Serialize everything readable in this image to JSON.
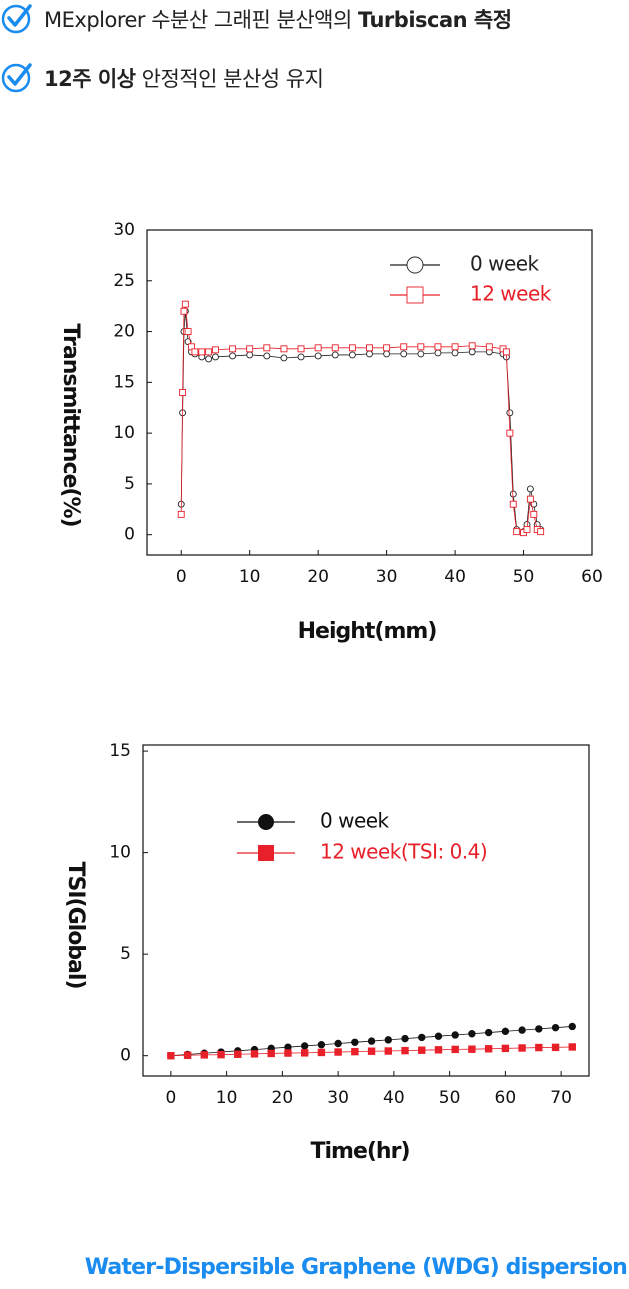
{
  "bullets": [
    {
      "parts": [
        {
          "text": "MExplorer 수분산 그래핀 분산액의 "
        },
        {
          "text": "Turbiscan 측정",
          "bold": true
        }
      ]
    },
    {
      "parts": [
        {
          "text": "12주 이상",
          "bold": true
        },
        {
          "text": " 안정적인 분산성 유지"
        }
      ]
    }
  ],
  "chart_data": [
    {
      "type": "line",
      "xlabel": "Height(mm)",
      "ylabel": "Transmittance(%)",
      "x": [
        0,
        0.2,
        0.4,
        0.6,
        1,
        1.5,
        2,
        3,
        4,
        5,
        7.5,
        10,
        12.5,
        15,
        17.5,
        20,
        22.5,
        25,
        27.5,
        30,
        32.5,
        35,
        37.5,
        40,
        42.5,
        45,
        47,
        47.5,
        48,
        48.5,
        49,
        50,
        50.5,
        51,
        51.5,
        52,
        52.5
      ],
      "series": [
        {
          "name": "0 week",
          "color": "#222222",
          "marker": "circle-open",
          "values": [
            3,
            12,
            20,
            22,
            19,
            18,
            17.8,
            17.5,
            17.3,
            17.5,
            17.6,
            17.7,
            17.6,
            17.4,
            17.5,
            17.6,
            17.7,
            17.7,
            17.8,
            17.8,
            17.8,
            17.8,
            17.9,
            17.9,
            18,
            18,
            17.8,
            17.5,
            12,
            4,
            0.5,
            0.3,
            1,
            4.5,
            3,
            1,
            0.5
          ]
        },
        {
          "name": "12 week",
          "color": "#e8202a",
          "marker": "square-open",
          "values": [
            2,
            14,
            22,
            22.7,
            20,
            18.5,
            18,
            18,
            18,
            18.2,
            18.3,
            18.3,
            18.4,
            18.3,
            18.3,
            18.4,
            18.4,
            18.4,
            18.4,
            18.4,
            18.5,
            18.5,
            18.5,
            18.5,
            18.6,
            18.5,
            18.3,
            18,
            10,
            3,
            0.3,
            0.2,
            0.5,
            3.5,
            2,
            0.5,
            0.3
          ]
        }
      ],
      "xlim": [
        -5,
        60
      ],
      "ylim": [
        -2,
        30
      ],
      "xticks": [
        0,
        10,
        20,
        30,
        40,
        50,
        60
      ],
      "yticks": [
        0,
        5,
        10,
        15,
        20,
        25,
        30
      ]
    },
    {
      "type": "line",
      "xlabel": "Time(hr)",
      "ylabel": "TSI(Global)",
      "x": [
        0,
        3,
        6,
        9,
        12,
        15,
        18,
        21,
        24,
        27,
        30,
        33,
        36,
        39,
        42,
        45,
        48,
        51,
        54,
        57,
        60,
        63,
        66,
        69,
        72
      ],
      "series": [
        {
          "name": "0 week",
          "color": "#111111",
          "marker": "circle",
          "values": [
            0,
            0.06,
            0.12,
            0.18,
            0.24,
            0.3,
            0.36,
            0.42,
            0.48,
            0.54,
            0.6,
            0.66,
            0.72,
            0.78,
            0.84,
            0.9,
            0.96,
            1.02,
            1.08,
            1.14,
            1.2,
            1.26,
            1.32,
            1.38,
            1.44
          ]
        },
        {
          "name": "12 week(TSI: 0.4)",
          "color": "#e8202a",
          "marker": "square",
          "values": [
            0,
            0.02,
            0.04,
            0.05,
            0.07,
            0.09,
            0.11,
            0.13,
            0.14,
            0.16,
            0.18,
            0.2,
            0.22,
            0.23,
            0.25,
            0.27,
            0.29,
            0.31,
            0.32,
            0.34,
            0.36,
            0.38,
            0.4,
            0.41,
            0.43
          ]
        }
      ],
      "xlim": [
        -5,
        75
      ],
      "ylim": [
        -1,
        15.3
      ],
      "xticks": [
        0,
        10,
        20,
        30,
        40,
        50,
        60,
        70
      ],
      "yticks": [
        0,
        5,
        10,
        15
      ]
    }
  ],
  "caption": "Water-Dispersible Graphene (WDG) dispersion"
}
